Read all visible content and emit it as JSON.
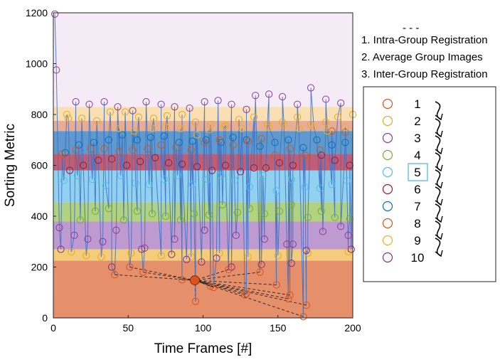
{
  "chart_data": {
    "type": "scatter",
    "title": "",
    "xlabel": "Time Frames [#]",
    "ylabel": "Sorting Metric",
    "xlim": [
      0,
      200
    ],
    "ylim": [
      0,
      1200
    ],
    "xticks": [
      0,
      50,
      100,
      150,
      200
    ],
    "yticks": [
      0,
      200,
      400,
      600,
      800,
      1000,
      1200
    ],
    "grid": false,
    "line_color": "#3a6fc4",
    "group_mean_marker": {
      "x": 94.5,
      "y": 148,
      "color": "#d9531e"
    },
    "bands": [
      {
        "group": "1",
        "y0": 0,
        "y1": 225,
        "color": "#e2835b"
      },
      {
        "group": "9",
        "y0": 225,
        "y1": 270,
        "color": "#f3c76b"
      },
      {
        "group": "10",
        "y0": 270,
        "y1": 380,
        "color": "#b88fcc"
      },
      {
        "group": "4",
        "y0": 380,
        "y1": 455,
        "color": "#a9cd72"
      },
      {
        "group": "5",
        "y0": 455,
        "y1": 580,
        "color": "#86cdee"
      },
      {
        "group": "6",
        "y0": 580,
        "y1": 645,
        "color": "#b84d65"
      },
      {
        "group": "7",
        "y0": 645,
        "y1": 735,
        "color": "#4e8ec8"
      },
      {
        "group": "8",
        "y0": 735,
        "y1": 775,
        "color": "#e6a489"
      },
      {
        "group": "2",
        "y0": 775,
        "y1": 830,
        "color": "#f8dca8"
      },
      {
        "group": "3",
        "y0": 830,
        "y1": 1200,
        "color": "#f3e9f5"
      }
    ],
    "series": [
      {
        "name": "1",
        "color": "#d9531e",
        "points": [
          [
            41,
            170
          ],
          [
            51,
            200
          ],
          [
            60,
            180
          ],
          [
            86,
            150
          ],
          [
            95,
            65
          ],
          [
            105,
            125
          ],
          [
            107,
            120
          ],
          [
            117,
            190
          ],
          [
            128,
            90
          ],
          [
            129,
            95
          ],
          [
            138,
            180
          ],
          [
            149,
            130
          ],
          [
            157,
            75
          ],
          [
            158,
            90
          ],
          [
            167,
            5
          ],
          [
            169,
            50
          ]
        ]
      },
      {
        "name": "2",
        "color": "#eaa71f",
        "points": [
          [
            10,
            785
          ],
          [
            19,
            785
          ],
          [
            29,
            775
          ],
          [
            38,
            810
          ],
          [
            48,
            810
          ],
          [
            57,
            790
          ],
          [
            67,
            785
          ],
          [
            76,
            795
          ],
          [
            86,
            800
          ],
          [
            95,
            770
          ],
          [
            105,
            760
          ],
          [
            115,
            755
          ],
          [
            124,
            780
          ],
          [
            134,
            790
          ],
          [
            143,
            760
          ],
          [
            153,
            770
          ],
          [
            163,
            790
          ],
          [
            172,
            760
          ],
          [
            182,
            770
          ],
          [
            190,
            790
          ],
          [
            200,
            800
          ],
          [
            12,
            260
          ],
          [
            22,
            245
          ],
          [
            32,
            240
          ],
          [
            52,
            255
          ],
          [
            72,
            245
          ],
          [
            92,
            240
          ],
          [
            111,
            255
          ],
          [
            130,
            240
          ],
          [
            150,
            245
          ],
          [
            170,
            255
          ],
          [
            197,
            260
          ]
        ]
      },
      {
        "name": "3",
        "color": "#8b3a9b",
        "points": [
          [
            1,
            1195
          ],
          [
            2,
            975
          ],
          [
            15,
            850
          ],
          [
            24,
            840
          ],
          [
            34,
            850
          ],
          [
            43,
            830
          ],
          [
            53,
            815
          ],
          [
            62,
            850
          ],
          [
            72,
            840
          ],
          [
            81,
            830
          ],
          [
            91,
            825
          ],
          [
            101,
            850
          ],
          [
            110,
            855
          ],
          [
            119,
            840
          ],
          [
            129,
            820
          ],
          [
            135,
            875
          ],
          [
            144,
            880
          ],
          [
            153,
            870
          ],
          [
            163,
            840
          ],
          [
            172,
            905
          ],
          [
            182,
            860
          ],
          [
            192,
            845
          ],
          [
            4,
            355
          ],
          [
            14,
            325
          ],
          [
            23,
            310
          ],
          [
            33,
            300
          ],
          [
            42,
            345
          ],
          [
            61,
            275
          ],
          [
            81,
            310
          ],
          [
            101,
            345
          ],
          [
            122,
            325
          ],
          [
            141,
            310
          ],
          [
            156,
            290
          ],
          [
            160,
            290
          ],
          [
            180,
            340
          ],
          [
            192,
            360
          ],
          [
            197,
            325
          ]
        ]
      },
      {
        "name": "4",
        "color": "#77ac30",
        "points": [
          [
            18,
            385
          ],
          [
            28,
            420
          ],
          [
            37,
            430
          ],
          [
            47,
            385
          ],
          [
            56,
            420
          ],
          [
            66,
            410
          ],
          [
            75,
            400
          ],
          [
            85,
            385
          ],
          [
            94,
            410
          ],
          [
            104,
            405
          ],
          [
            113,
            445
          ],
          [
            123,
            415
          ],
          [
            131,
            430
          ],
          [
            141,
            410
          ],
          [
            151,
            420
          ],
          [
            159,
            445
          ],
          [
            170,
            395
          ],
          [
            179,
            420
          ],
          [
            188,
            395
          ],
          [
            198,
            390
          ]
        ]
      },
      {
        "name": "5",
        "color": "#4dbeee",
        "points": [
          [
            7,
            540
          ],
          [
            16,
            560
          ],
          [
            26,
            545
          ],
          [
            35,
            520
          ],
          [
            45,
            560
          ],
          [
            55,
            530
          ],
          [
            64,
            525
          ],
          [
            74,
            545
          ],
          [
            83,
            560
          ],
          [
            93,
            525
          ],
          [
            103,
            545
          ],
          [
            112,
            560
          ],
          [
            121,
            540
          ],
          [
            131,
            515
          ],
          [
            140,
            560
          ],
          [
            149,
            500
          ],
          [
            159,
            545
          ],
          [
            168,
            515
          ],
          [
            178,
            510
          ],
          [
            186,
            525
          ],
          [
            196,
            540
          ]
        ]
      },
      {
        "name": "6",
        "color": "#a2142f",
        "points": [
          [
            11,
            580
          ],
          [
            20,
            600
          ],
          [
            30,
            620
          ],
          [
            39,
            625
          ],
          [
            49,
            600
          ],
          [
            58,
            615
          ],
          [
            68,
            630
          ],
          [
            77,
            610
          ],
          [
            86,
            605
          ],
          [
            96,
            595
          ],
          [
            106,
            580
          ],
          [
            115,
            600
          ],
          [
            125,
            575
          ],
          [
            134,
            590
          ],
          [
            142,
            590
          ],
          [
            151,
            610
          ],
          [
            160,
            600
          ],
          [
            179,
            640
          ],
          [
            188,
            620
          ],
          [
            198,
            600
          ]
        ]
      },
      {
        "name": "7",
        "color": "#0072bd",
        "points": [
          [
            8,
            650
          ],
          [
            17,
            680
          ],
          [
            27,
            690
          ],
          [
            37,
            700
          ],
          [
            46,
            720
          ],
          [
            56,
            700
          ],
          [
            65,
            710
          ],
          [
            74,
            715
          ],
          [
            84,
            690
          ],
          [
            93,
            695
          ],
          [
            102,
            700
          ],
          [
            112,
            690
          ],
          [
            120,
            710
          ],
          [
            129,
            700
          ],
          [
            138,
            675
          ],
          [
            148,
            690
          ],
          [
            157,
            700
          ],
          [
            167,
            670
          ],
          [
            176,
            700
          ],
          [
            186,
            680
          ],
          [
            195,
            690
          ]
        ]
      },
      {
        "name": "8",
        "color": "#d95319",
        "points": [
          [
            6,
            645
          ],
          [
            15,
            660
          ],
          [
            25,
            665
          ],
          [
            34,
            665
          ],
          [
            44,
            655
          ],
          [
            53,
            660
          ],
          [
            63,
            665
          ],
          [
            72,
            680
          ],
          [
            82,
            670
          ],
          [
            92,
            660
          ],
          [
            101,
            690
          ],
          [
            111,
            700
          ],
          [
            120,
            680
          ],
          [
            130,
            695
          ],
          [
            139,
            705
          ],
          [
            148,
            640
          ],
          [
            158,
            665
          ],
          [
            168,
            640
          ],
          [
            178,
            660
          ],
          [
            186,
            735
          ],
          [
            195,
            730
          ]
        ]
      },
      {
        "name": "9",
        "color": "#edb120",
        "points": [
          [
            9,
            800
          ],
          [
            44,
            745
          ],
          [
            54,
            735
          ],
          [
            66,
            745
          ],
          [
            75,
            750
          ],
          [
            85,
            745
          ],
          [
            96,
            720
          ],
          [
            104,
            740
          ],
          [
            114,
            750
          ],
          [
            126,
            745
          ],
          [
            144,
            750
          ],
          [
            154,
            760
          ],
          [
            164,
            745
          ],
          [
            174,
            750
          ],
          [
            183,
            735
          ],
          [
            195,
            750
          ]
        ]
      },
      {
        "name": "10",
        "color": "#7e2f8e",
        "points": [
          [
            5,
            270
          ],
          [
            39,
            200
          ],
          [
            59,
            270
          ],
          [
            79,
            250
          ],
          [
            89,
            230
          ],
          [
            99,
            220
          ],
          [
            109,
            235
          ],
          [
            119,
            200
          ],
          [
            139,
            210
          ],
          [
            159,
            215
          ],
          [
            169,
            265
          ],
          [
            199,
            270
          ]
        ]
      }
    ]
  },
  "steps": {
    "dashes": "- - -",
    "step1": "1. Intra-Group Registration",
    "step2": "2. Average Group Images",
    "step3": "3. Inter-Group Registration"
  },
  "legend": {
    "items": [
      {
        "label": "1",
        "color": "#d9531e"
      },
      {
        "label": "2",
        "color": "#eaa71f"
      },
      {
        "label": "3",
        "color": "#8b3a9b"
      },
      {
        "label": "4",
        "color": "#77ac30"
      },
      {
        "label": "5",
        "color": "#4dbeee"
      },
      {
        "label": "6",
        "color": "#a2142f"
      },
      {
        "label": "7",
        "color": "#0072bd"
      },
      {
        "label": "8",
        "color": "#d95319"
      },
      {
        "label": "9",
        "color": "#edb120"
      },
      {
        "label": "10",
        "color": "#7e2f8e"
      }
    ],
    "highlighted": "5",
    "highlight_color": "#6fc3e8"
  }
}
